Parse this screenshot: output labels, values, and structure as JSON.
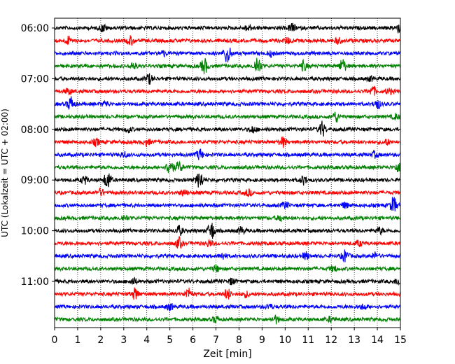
{
  "chart_data": {
    "type": "line",
    "title": "",
    "xlabel": "Zeit  [min]",
    "ylabel": "UTC (Lokalzeit = UTC + 02:00)",
    "xlim": [
      0,
      15
    ],
    "x_ticks": [
      "0",
      "1",
      "2",
      "3",
      "4",
      "5",
      "6",
      "7",
      "8",
      "9",
      "10",
      "11",
      "12",
      "13",
      "14",
      "15"
    ],
    "y_tick_labels": [
      "06:00",
      "07:00",
      "08:00",
      "09:00",
      "10:00",
      "11:00"
    ],
    "trace_interval_min": 15,
    "trace_colors": [
      "#000000",
      "#ff0000",
      "#0000ff",
      "#008000"
    ],
    "grid": "vertical dotted",
    "traces": [
      {
        "start": "06:00",
        "color": "#000000",
        "events": [
          [
            2.1,
            0.7
          ],
          [
            8.4,
            0.6
          ],
          [
            10.3,
            0.8
          ],
          [
            14.9,
            0.8
          ]
        ]
      },
      {
        "start": "06:15",
        "color": "#ff0000",
        "events": [
          [
            0.6,
            0.7
          ],
          [
            3.3,
            0.9
          ],
          [
            10.1,
            0.6
          ],
          [
            12.3,
            0.5
          ]
        ]
      },
      {
        "start": "06:30",
        "color": "#0000ff",
        "events": [
          [
            4.7,
            0.5
          ],
          [
            7.5,
            2.0
          ],
          [
            9.4,
            0.5
          ]
        ]
      },
      {
        "start": "06:45",
        "color": "#008000",
        "events": [
          [
            3.4,
            0.7
          ],
          [
            6.5,
            1.5
          ],
          [
            8.8,
            1.9
          ],
          [
            10.8,
            0.9
          ],
          [
            12.5,
            1.3
          ]
        ]
      },
      {
        "start": "07:00",
        "color": "#000000",
        "events": [
          [
            4.1,
            0.9
          ],
          [
            13.7,
            0.4
          ]
        ]
      },
      {
        "start": "07:15",
        "color": "#ff0000",
        "events": [
          [
            0.6,
            0.6
          ],
          [
            13.8,
            0.9
          ],
          [
            14.5,
            0.5
          ]
        ]
      },
      {
        "start": "07:30",
        "color": "#0000ff",
        "events": [
          [
            0.7,
            1.4
          ],
          [
            2.2,
            0.5
          ],
          [
            14.0,
            0.9
          ]
        ]
      },
      {
        "start": "07:45",
        "color": "#008000",
        "events": [
          [
            12.2,
            1.0
          ],
          [
            14.8,
            0.5
          ]
        ]
      },
      {
        "start": "08:00",
        "color": "#000000",
        "events": [
          [
            3.2,
            0.5
          ],
          [
            8.6,
            0.6
          ],
          [
            11.6,
            1.5
          ]
        ]
      },
      {
        "start": "08:15",
        "color": "#ff0000",
        "events": [
          [
            1.8,
            0.6
          ],
          [
            4.0,
            0.6
          ],
          [
            9.9,
            0.9
          ],
          [
            14.4,
            0.5
          ]
        ]
      },
      {
        "start": "08:30",
        "color": "#0000ff",
        "events": [
          [
            3.0,
            0.5
          ],
          [
            6.3,
            1.0
          ],
          [
            13.9,
            0.5
          ]
        ]
      },
      {
        "start": "08:45",
        "color": "#008000",
        "events": [
          [
            5.0,
            1.6
          ],
          [
            5.4,
            1.0
          ],
          [
            14.9,
            0.8
          ]
        ]
      },
      {
        "start": "09:00",
        "color": "#000000",
        "events": [
          [
            1.3,
            0.7
          ],
          [
            2.3,
            1.8
          ],
          [
            6.3,
            1.7
          ],
          [
            10.8,
            0.8
          ]
        ]
      },
      {
        "start": "09:15",
        "color": "#ff0000",
        "events": [
          [
            2.0,
            0.6
          ],
          [
            5.6,
            0.6
          ],
          [
            8.4,
            0.6
          ]
        ]
      },
      {
        "start": "09:30",
        "color": "#0000ff",
        "events": [
          [
            10.0,
            0.6
          ],
          [
            12.6,
            0.5
          ],
          [
            14.7,
            1.6
          ]
        ]
      },
      {
        "start": "09:45",
        "color": "#008000",
        "events": [
          [
            3.0,
            0.5
          ],
          [
            9.8,
            0.5
          ]
        ]
      },
      {
        "start": "10:00",
        "color": "#000000",
        "events": [
          [
            5.4,
            0.9
          ],
          [
            6.8,
            1.8
          ],
          [
            8.1,
            0.7
          ],
          [
            14.1,
            0.6
          ]
        ]
      },
      {
        "start": "10:15",
        "color": "#ff0000",
        "events": [
          [
            5.4,
            1.0
          ],
          [
            6.7,
            0.6
          ],
          [
            13.2,
            0.5
          ]
        ]
      },
      {
        "start": "10:30",
        "color": "#0000ff",
        "events": [
          [
            7.3,
            0.6
          ],
          [
            10.9,
            0.7
          ],
          [
            12.6,
            1.1
          ],
          [
            13.9,
            0.6
          ]
        ]
      },
      {
        "start": "10:45",
        "color": "#008000",
        "events": [
          [
            7.0,
            0.6
          ],
          [
            12.1,
            0.5
          ]
        ]
      },
      {
        "start": "11:00",
        "color": "#000000",
        "events": [
          [
            3.4,
            0.7
          ],
          [
            7.7,
            0.6
          ],
          [
            14.9,
            0.6
          ]
        ]
      },
      {
        "start": "11:15",
        "color": "#ff0000",
        "events": [
          [
            3.5,
            1.1
          ],
          [
            5.8,
            1.1
          ],
          [
            7.5,
            1.0
          ],
          [
            8.3,
            0.5
          ]
        ]
      },
      {
        "start": "11:30",
        "color": "#0000ff",
        "events": [
          [
            5.0,
            0.6
          ],
          [
            9.3,
            0.5
          ],
          [
            13.4,
            0.5
          ]
        ]
      },
      {
        "start": "11:45",
        "color": "#008000",
        "events": [
          [
            7.0,
            0.6
          ],
          [
            9.6,
            0.7
          ],
          [
            12.0,
            0.5
          ]
        ]
      }
    ]
  }
}
